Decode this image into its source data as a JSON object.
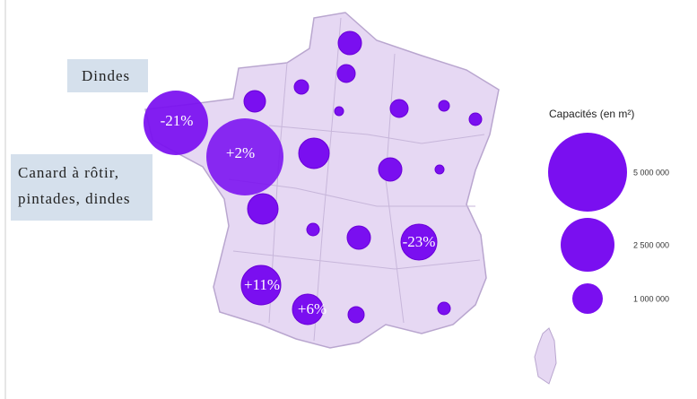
{
  "labels": {
    "dindes": "Dindes",
    "canard": "Canard à rôtir, pintades, dindes"
  },
  "changes": [
    "-21%",
    "+2%",
    "-23%",
    "+11%",
    "+6%"
  ],
  "legend": {
    "title": "Capacités (en m²)",
    "sizes": [
      "5 000 000",
      "2 500 000",
      "1 000 000"
    ]
  }
}
